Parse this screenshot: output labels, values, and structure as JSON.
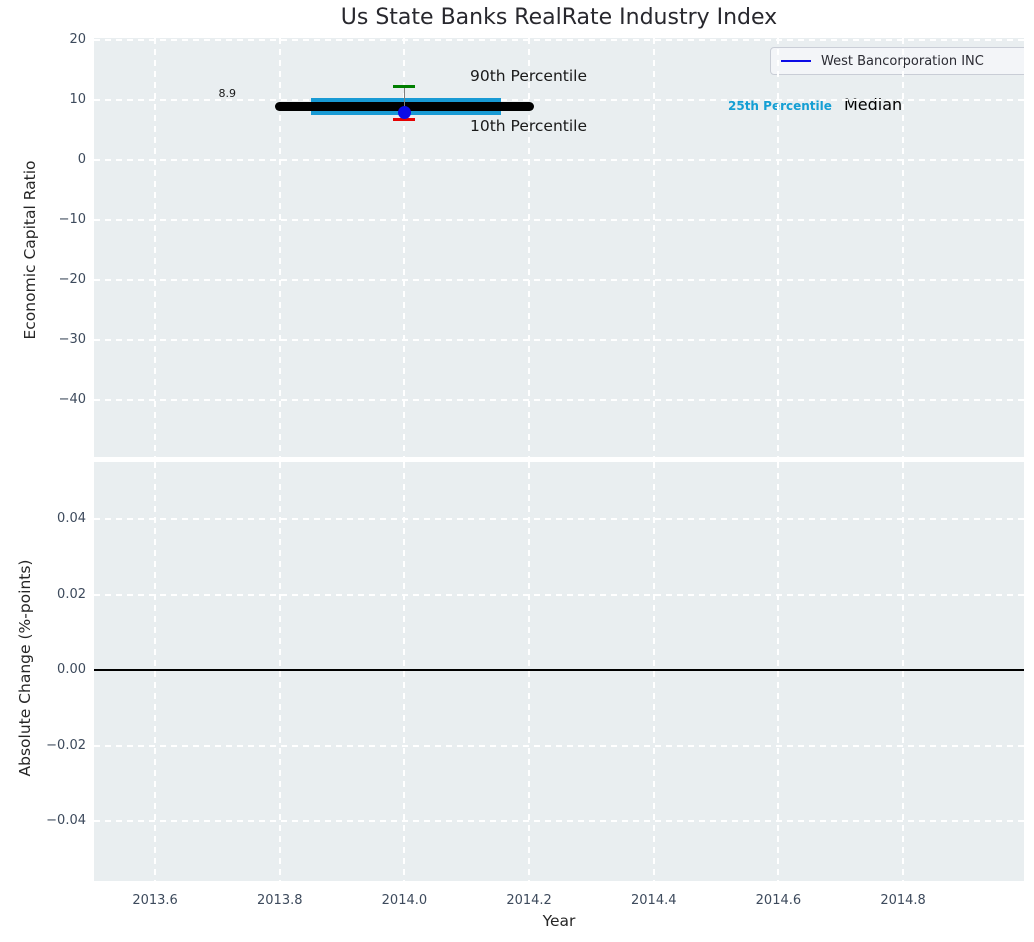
{
  "title": "Us State Banks RealRate Industry Index",
  "legend": {
    "series_label": "West Bancorporation INC"
  },
  "axes": {
    "xticks": {
      "values": [
        2013.6,
        2013.8,
        2014.0,
        2014.2,
        2014.4,
        2014.6,
        2014.8
      ],
      "labels": [
        "2013.6",
        "2013.8",
        "2014.0",
        "2014.2",
        "2014.4",
        "2014.6",
        "2014.8"
      ]
    },
    "top": {
      "ylabel": "Economic Capital Ratio",
      "ytick_values": [
        20,
        10,
        0,
        -10,
        -20,
        -30,
        -40
      ],
      "ytick_labels": [
        "20",
        "10",
        "0",
        "−10",
        "−20",
        "−30",
        "−40"
      ]
    },
    "bottom": {
      "ylabel": "Absolute Change (%-points)",
      "xlabel": "Year",
      "ytick_values": [
        0.04,
        0.02,
        0,
        -0.02,
        -0.04
      ],
      "ytick_labels": [
        "0.04",
        "0.02",
        "0.00",
        "−0.02",
        "−0.04"
      ]
    }
  },
  "annotations": {
    "p90": "90th Percentile",
    "p10": "10th Percentile",
    "p25": "25th Percentile",
    "median": "Median",
    "median_value": "8.9"
  },
  "colors": {
    "series": "#0b0be6",
    "median_line": "#000000",
    "iqr_band": "#189ad4",
    "p90_cap": "#007f00",
    "p10_cap": "#e60000",
    "whisker_line": "#7d7d7d",
    "plot_bg": "#e9eef0",
    "grid": "#ffffff",
    "tick_text": "#3d4a5c",
    "zero_line": "#000000"
  },
  "chart_data": [
    {
      "type": "line",
      "title": "Us State Banks RealRate Industry Index",
      "ylabel": "Economic Capital Ratio",
      "xlim": [
        2013.502,
        2014.994
      ],
      "ylim": [
        -49.5,
        20.3
      ],
      "grid": true,
      "legend_position": "upper right",
      "series": [
        {
          "name": "West Bancorporation INC",
          "type": "scatter",
          "x": [
            2014.0
          ],
          "values": [
            8.0
          ],
          "color": "#0b0be6"
        }
      ],
      "industry_stats": {
        "year": 2014.0,
        "median": 8.9,
        "median_label": "8.9",
        "median_line_x": [
          2013.8,
          2014.2
        ],
        "iqr_band": {
          "x_start": 2013.85,
          "x_end": 2014.155,
          "low": 7.5,
          "high": 10.3
        },
        "p90": 12.3,
        "p10": 6.7
      },
      "annotations": [
        "8.9",
        "90th Percentile",
        "10th Percentile",
        "25th Percentile",
        "Median"
      ]
    },
    {
      "type": "line",
      "ylabel": "Absolute Change (%-points)",
      "xlabel": "Year",
      "xlim": [
        2013.502,
        2014.994
      ],
      "ylim": [
        -0.056,
        0.055
      ],
      "grid": true,
      "series": [],
      "zero_line": 0.0
    }
  ]
}
